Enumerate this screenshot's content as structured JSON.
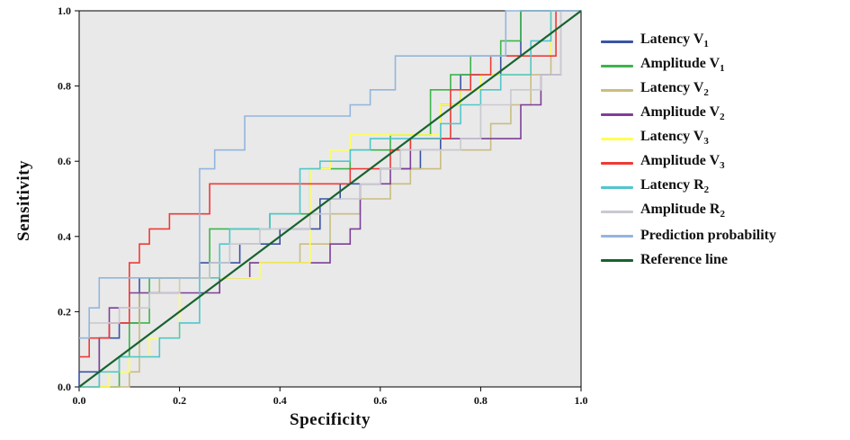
{
  "chart_data": {
    "type": "line",
    "subtype": "roc-step-curves",
    "title": "",
    "xlabel": "Specificity",
    "ylabel": "Sensitivity",
    "xlim": [
      0,
      1
    ],
    "ylim": [
      0,
      1
    ],
    "xticks": [
      0.0,
      0.2,
      0.4,
      0.6,
      0.8,
      1.0
    ],
    "yticks": [
      0.0,
      0.2,
      0.4,
      0.6,
      0.8,
      1.0
    ],
    "tick_labels": [
      "0.0",
      "0.2",
      "0.4",
      "0.6",
      "0.8",
      "1.0"
    ],
    "grid": false,
    "legend_position": "right",
    "plot_bg": "#e9e9e9",
    "plot_border_color": "#000000",
    "series": [
      {
        "name": "Latency V1",
        "label_base": "Latency V",
        "label_sub": "1",
        "color": "#3a53a4",
        "width": 1.6,
        "points": [
          [
            0,
            0
          ],
          [
            0,
            0.04
          ],
          [
            0.04,
            0.04
          ],
          [
            0.04,
            0.13
          ],
          [
            0.08,
            0.13
          ],
          [
            0.08,
            0.17
          ],
          [
            0.12,
            0.17
          ],
          [
            0.12,
            0.29
          ],
          [
            0.24,
            0.29
          ],
          [
            0.24,
            0.33
          ],
          [
            0.32,
            0.33
          ],
          [
            0.32,
            0.38
          ],
          [
            0.4,
            0.38
          ],
          [
            0.4,
            0.42
          ],
          [
            0.48,
            0.42
          ],
          [
            0.48,
            0.5
          ],
          [
            0.52,
            0.5
          ],
          [
            0.52,
            0.54
          ],
          [
            0.6,
            0.54
          ],
          [
            0.6,
            0.58
          ],
          [
            0.68,
            0.58
          ],
          [
            0.68,
            0.63
          ],
          [
            0.72,
            0.63
          ],
          [
            0.72,
            0.75
          ],
          [
            0.76,
            0.75
          ],
          [
            0.76,
            0.83
          ],
          [
            0.84,
            0.83
          ],
          [
            0.84,
            0.88
          ],
          [
            0.88,
            0.88
          ],
          [
            0.88,
            1.0
          ],
          [
            1,
            1
          ]
        ]
      },
      {
        "name": "Amplitude V1",
        "label_base": "Amplitude V",
        "label_sub": "1",
        "color": "#3cb54a",
        "width": 1.6,
        "points": [
          [
            0,
            0
          ],
          [
            0.08,
            0
          ],
          [
            0.08,
            0.08
          ],
          [
            0.1,
            0.08
          ],
          [
            0.1,
            0.17
          ],
          [
            0.14,
            0.17
          ],
          [
            0.14,
            0.29
          ],
          [
            0.26,
            0.29
          ],
          [
            0.26,
            0.42
          ],
          [
            0.38,
            0.42
          ],
          [
            0.38,
            0.46
          ],
          [
            0.46,
            0.46
          ],
          [
            0.46,
            0.58
          ],
          [
            0.54,
            0.58
          ],
          [
            0.54,
            0.63
          ],
          [
            0.62,
            0.63
          ],
          [
            0.62,
            0.67
          ],
          [
            0.7,
            0.67
          ],
          [
            0.7,
            0.79
          ],
          [
            0.74,
            0.79
          ],
          [
            0.74,
            0.83
          ],
          [
            0.78,
            0.83
          ],
          [
            0.78,
            0.88
          ],
          [
            0.84,
            0.88
          ],
          [
            0.84,
            0.92
          ],
          [
            0.88,
            0.92
          ],
          [
            0.88,
            1.0
          ],
          [
            1,
            1
          ]
        ]
      },
      {
        "name": "Latency V2",
        "label_base": "Latency V",
        "label_sub": "2",
        "color": "#c9bd82",
        "width": 1.6,
        "points": [
          [
            0,
            0
          ],
          [
            0.1,
            0
          ],
          [
            0.1,
            0.04
          ],
          [
            0.12,
            0.04
          ],
          [
            0.12,
            0.25
          ],
          [
            0.16,
            0.25
          ],
          [
            0.16,
            0.29
          ],
          [
            0.34,
            0.29
          ],
          [
            0.34,
            0.33
          ],
          [
            0.44,
            0.33
          ],
          [
            0.44,
            0.38
          ],
          [
            0.5,
            0.38
          ],
          [
            0.5,
            0.46
          ],
          [
            0.56,
            0.46
          ],
          [
            0.56,
            0.5
          ],
          [
            0.62,
            0.5
          ],
          [
            0.62,
            0.54
          ],
          [
            0.66,
            0.54
          ],
          [
            0.66,
            0.58
          ],
          [
            0.72,
            0.58
          ],
          [
            0.72,
            0.63
          ],
          [
            0.82,
            0.63
          ],
          [
            0.82,
            0.7
          ],
          [
            0.86,
            0.7
          ],
          [
            0.86,
            0.75
          ],
          [
            0.9,
            0.75
          ],
          [
            0.9,
            0.83
          ],
          [
            0.94,
            0.83
          ],
          [
            0.94,
            1.0
          ],
          [
            1,
            1
          ]
        ]
      },
      {
        "name": "Amplitude V2",
        "label_base": "Amplitude V",
        "label_sub": "2",
        "color": "#7d3f98",
        "width": 1.6,
        "points": [
          [
            0,
            0
          ],
          [
            0.04,
            0
          ],
          [
            0.04,
            0.13
          ],
          [
            0.06,
            0.13
          ],
          [
            0.06,
            0.21
          ],
          [
            0.1,
            0.21
          ],
          [
            0.1,
            0.25
          ],
          [
            0.28,
            0.25
          ],
          [
            0.28,
            0.29
          ],
          [
            0.34,
            0.29
          ],
          [
            0.34,
            0.33
          ],
          [
            0.5,
            0.33
          ],
          [
            0.5,
            0.38
          ],
          [
            0.54,
            0.38
          ],
          [
            0.54,
            0.42
          ],
          [
            0.56,
            0.42
          ],
          [
            0.56,
            0.54
          ],
          [
            0.62,
            0.54
          ],
          [
            0.62,
            0.58
          ],
          [
            0.66,
            0.58
          ],
          [
            0.66,
            0.66
          ],
          [
            0.88,
            0.66
          ],
          [
            0.88,
            0.75
          ],
          [
            0.92,
            0.75
          ],
          [
            0.92,
            0.83
          ],
          [
            0.96,
            0.83
          ],
          [
            0.96,
            1.0
          ],
          [
            1,
            1
          ]
        ]
      },
      {
        "name": "Latency V3",
        "label_base": "Latency V",
        "label_sub": "3",
        "color": "#ffff54",
        "width": 1.6,
        "points": [
          [
            0,
            0
          ],
          [
            0.06,
            0
          ],
          [
            0.06,
            0.04
          ],
          [
            0.1,
            0.04
          ],
          [
            0.1,
            0.08
          ],
          [
            0.14,
            0.08
          ],
          [
            0.14,
            0.13
          ],
          [
            0.2,
            0.13
          ],
          [
            0.2,
            0.29
          ],
          [
            0.36,
            0.29
          ],
          [
            0.36,
            0.33
          ],
          [
            0.46,
            0.33
          ],
          [
            0.46,
            0.58
          ],
          [
            0.5,
            0.58
          ],
          [
            0.5,
            0.63
          ],
          [
            0.54,
            0.63
          ],
          [
            0.54,
            0.67
          ],
          [
            0.72,
            0.67
          ],
          [
            0.72,
            0.75
          ],
          [
            0.76,
            0.75
          ],
          [
            0.76,
            0.79
          ],
          [
            0.8,
            0.79
          ],
          [
            0.8,
            0.83
          ],
          [
            0.9,
            0.83
          ],
          [
            0.9,
            0.88
          ],
          [
            0.94,
            0.88
          ],
          [
            0.94,
            1.0
          ],
          [
            1,
            1
          ]
        ]
      },
      {
        "name": "Amplitude V3",
        "label_base": "Amplitude V",
        "label_sub": "3",
        "color": "#ee3b36",
        "width": 1.6,
        "points": [
          [
            0,
            0.08
          ],
          [
            0.02,
            0.08
          ],
          [
            0.02,
            0.13
          ],
          [
            0.06,
            0.13
          ],
          [
            0.06,
            0.17
          ],
          [
            0.1,
            0.17
          ],
          [
            0.1,
            0.33
          ],
          [
            0.12,
            0.33
          ],
          [
            0.12,
            0.38
          ],
          [
            0.14,
            0.38
          ],
          [
            0.14,
            0.42
          ],
          [
            0.18,
            0.42
          ],
          [
            0.18,
            0.46
          ],
          [
            0.26,
            0.46
          ],
          [
            0.26,
            0.54
          ],
          [
            0.54,
            0.54
          ],
          [
            0.54,
            0.58
          ],
          [
            0.62,
            0.58
          ],
          [
            0.62,
            0.63
          ],
          [
            0.66,
            0.63
          ],
          [
            0.66,
            0.66
          ],
          [
            0.74,
            0.66
          ],
          [
            0.74,
            0.79
          ],
          [
            0.78,
            0.79
          ],
          [
            0.78,
            0.83
          ],
          [
            0.82,
            0.83
          ],
          [
            0.82,
            0.88
          ],
          [
            0.95,
            0.88
          ],
          [
            0.95,
            1.0
          ],
          [
            1,
            1
          ]
        ]
      },
      {
        "name": "Latency R2",
        "label_base": "Latency R",
        "label_sub": "2",
        "color": "#52c6cb",
        "width": 1.6,
        "points": [
          [
            0,
            0
          ],
          [
            0.04,
            0
          ],
          [
            0.04,
            0.04
          ],
          [
            0.08,
            0.04
          ],
          [
            0.08,
            0.08
          ],
          [
            0.16,
            0.08
          ],
          [
            0.16,
            0.13
          ],
          [
            0.2,
            0.13
          ],
          [
            0.2,
            0.17
          ],
          [
            0.24,
            0.17
          ],
          [
            0.24,
            0.29
          ],
          [
            0.28,
            0.29
          ],
          [
            0.28,
            0.38
          ],
          [
            0.3,
            0.38
          ],
          [
            0.3,
            0.42
          ],
          [
            0.38,
            0.42
          ],
          [
            0.38,
            0.46
          ],
          [
            0.44,
            0.46
          ],
          [
            0.44,
            0.58
          ],
          [
            0.48,
            0.58
          ],
          [
            0.48,
            0.6
          ],
          [
            0.54,
            0.6
          ],
          [
            0.54,
            0.63
          ],
          [
            0.58,
            0.63
          ],
          [
            0.58,
            0.66
          ],
          [
            0.72,
            0.66
          ],
          [
            0.72,
            0.7
          ],
          [
            0.76,
            0.7
          ],
          [
            0.76,
            0.75
          ],
          [
            0.8,
            0.75
          ],
          [
            0.8,
            0.79
          ],
          [
            0.84,
            0.79
          ],
          [
            0.84,
            0.83
          ],
          [
            0.9,
            0.83
          ],
          [
            0.9,
            0.92
          ],
          [
            0.94,
            0.92
          ],
          [
            0.94,
            1.0
          ],
          [
            1,
            1
          ]
        ]
      },
      {
        "name": "Amplitude R2",
        "label_base": "Amplitude R",
        "label_sub": "2",
        "color": "#c9c9d1",
        "width": 1.6,
        "points": [
          [
            0,
            0.13
          ],
          [
            0.02,
            0.13
          ],
          [
            0.02,
            0.17
          ],
          [
            0.08,
            0.17
          ],
          [
            0.08,
            0.21
          ],
          [
            0.14,
            0.21
          ],
          [
            0.14,
            0.25
          ],
          [
            0.2,
            0.25
          ],
          [
            0.2,
            0.29
          ],
          [
            0.26,
            0.29
          ],
          [
            0.26,
            0.33
          ],
          [
            0.3,
            0.33
          ],
          [
            0.3,
            0.38
          ],
          [
            0.36,
            0.38
          ],
          [
            0.36,
            0.42
          ],
          [
            0.46,
            0.42
          ],
          [
            0.46,
            0.46
          ],
          [
            0.5,
            0.46
          ],
          [
            0.5,
            0.5
          ],
          [
            0.56,
            0.5
          ],
          [
            0.56,
            0.54
          ],
          [
            0.6,
            0.54
          ],
          [
            0.6,
            0.58
          ],
          [
            0.64,
            0.58
          ],
          [
            0.64,
            0.63
          ],
          [
            0.76,
            0.63
          ],
          [
            0.76,
            0.66
          ],
          [
            0.8,
            0.66
          ],
          [
            0.8,
            0.75
          ],
          [
            0.86,
            0.75
          ],
          [
            0.86,
            0.79
          ],
          [
            0.92,
            0.79
          ],
          [
            0.92,
            0.83
          ],
          [
            0.96,
            0.83
          ],
          [
            0.96,
            1.0
          ],
          [
            1,
            1
          ]
        ]
      },
      {
        "name": "Prediction probability",
        "label_base": "Prediction probability",
        "label_sub": "",
        "color": "#92b6de",
        "width": 1.6,
        "points": [
          [
            0,
            0.13
          ],
          [
            0.02,
            0.13
          ],
          [
            0.02,
            0.21
          ],
          [
            0.04,
            0.21
          ],
          [
            0.04,
            0.29
          ],
          [
            0.24,
            0.29
          ],
          [
            0.24,
            0.58
          ],
          [
            0.27,
            0.58
          ],
          [
            0.27,
            0.63
          ],
          [
            0.33,
            0.63
          ],
          [
            0.33,
            0.72
          ],
          [
            0.54,
            0.72
          ],
          [
            0.54,
            0.75
          ],
          [
            0.58,
            0.75
          ],
          [
            0.58,
            0.79
          ],
          [
            0.63,
            0.79
          ],
          [
            0.63,
            0.88
          ],
          [
            0.85,
            0.88
          ],
          [
            0.85,
            1.0
          ],
          [
            0.87,
            1.0
          ],
          [
            1,
            1
          ]
        ]
      },
      {
        "name": "Reference line",
        "label_base": "Reference line",
        "label_sub": "",
        "color": "#17632f",
        "width": 2.2,
        "points": [
          [
            0,
            0
          ],
          [
            1,
            1
          ]
        ]
      }
    ]
  }
}
